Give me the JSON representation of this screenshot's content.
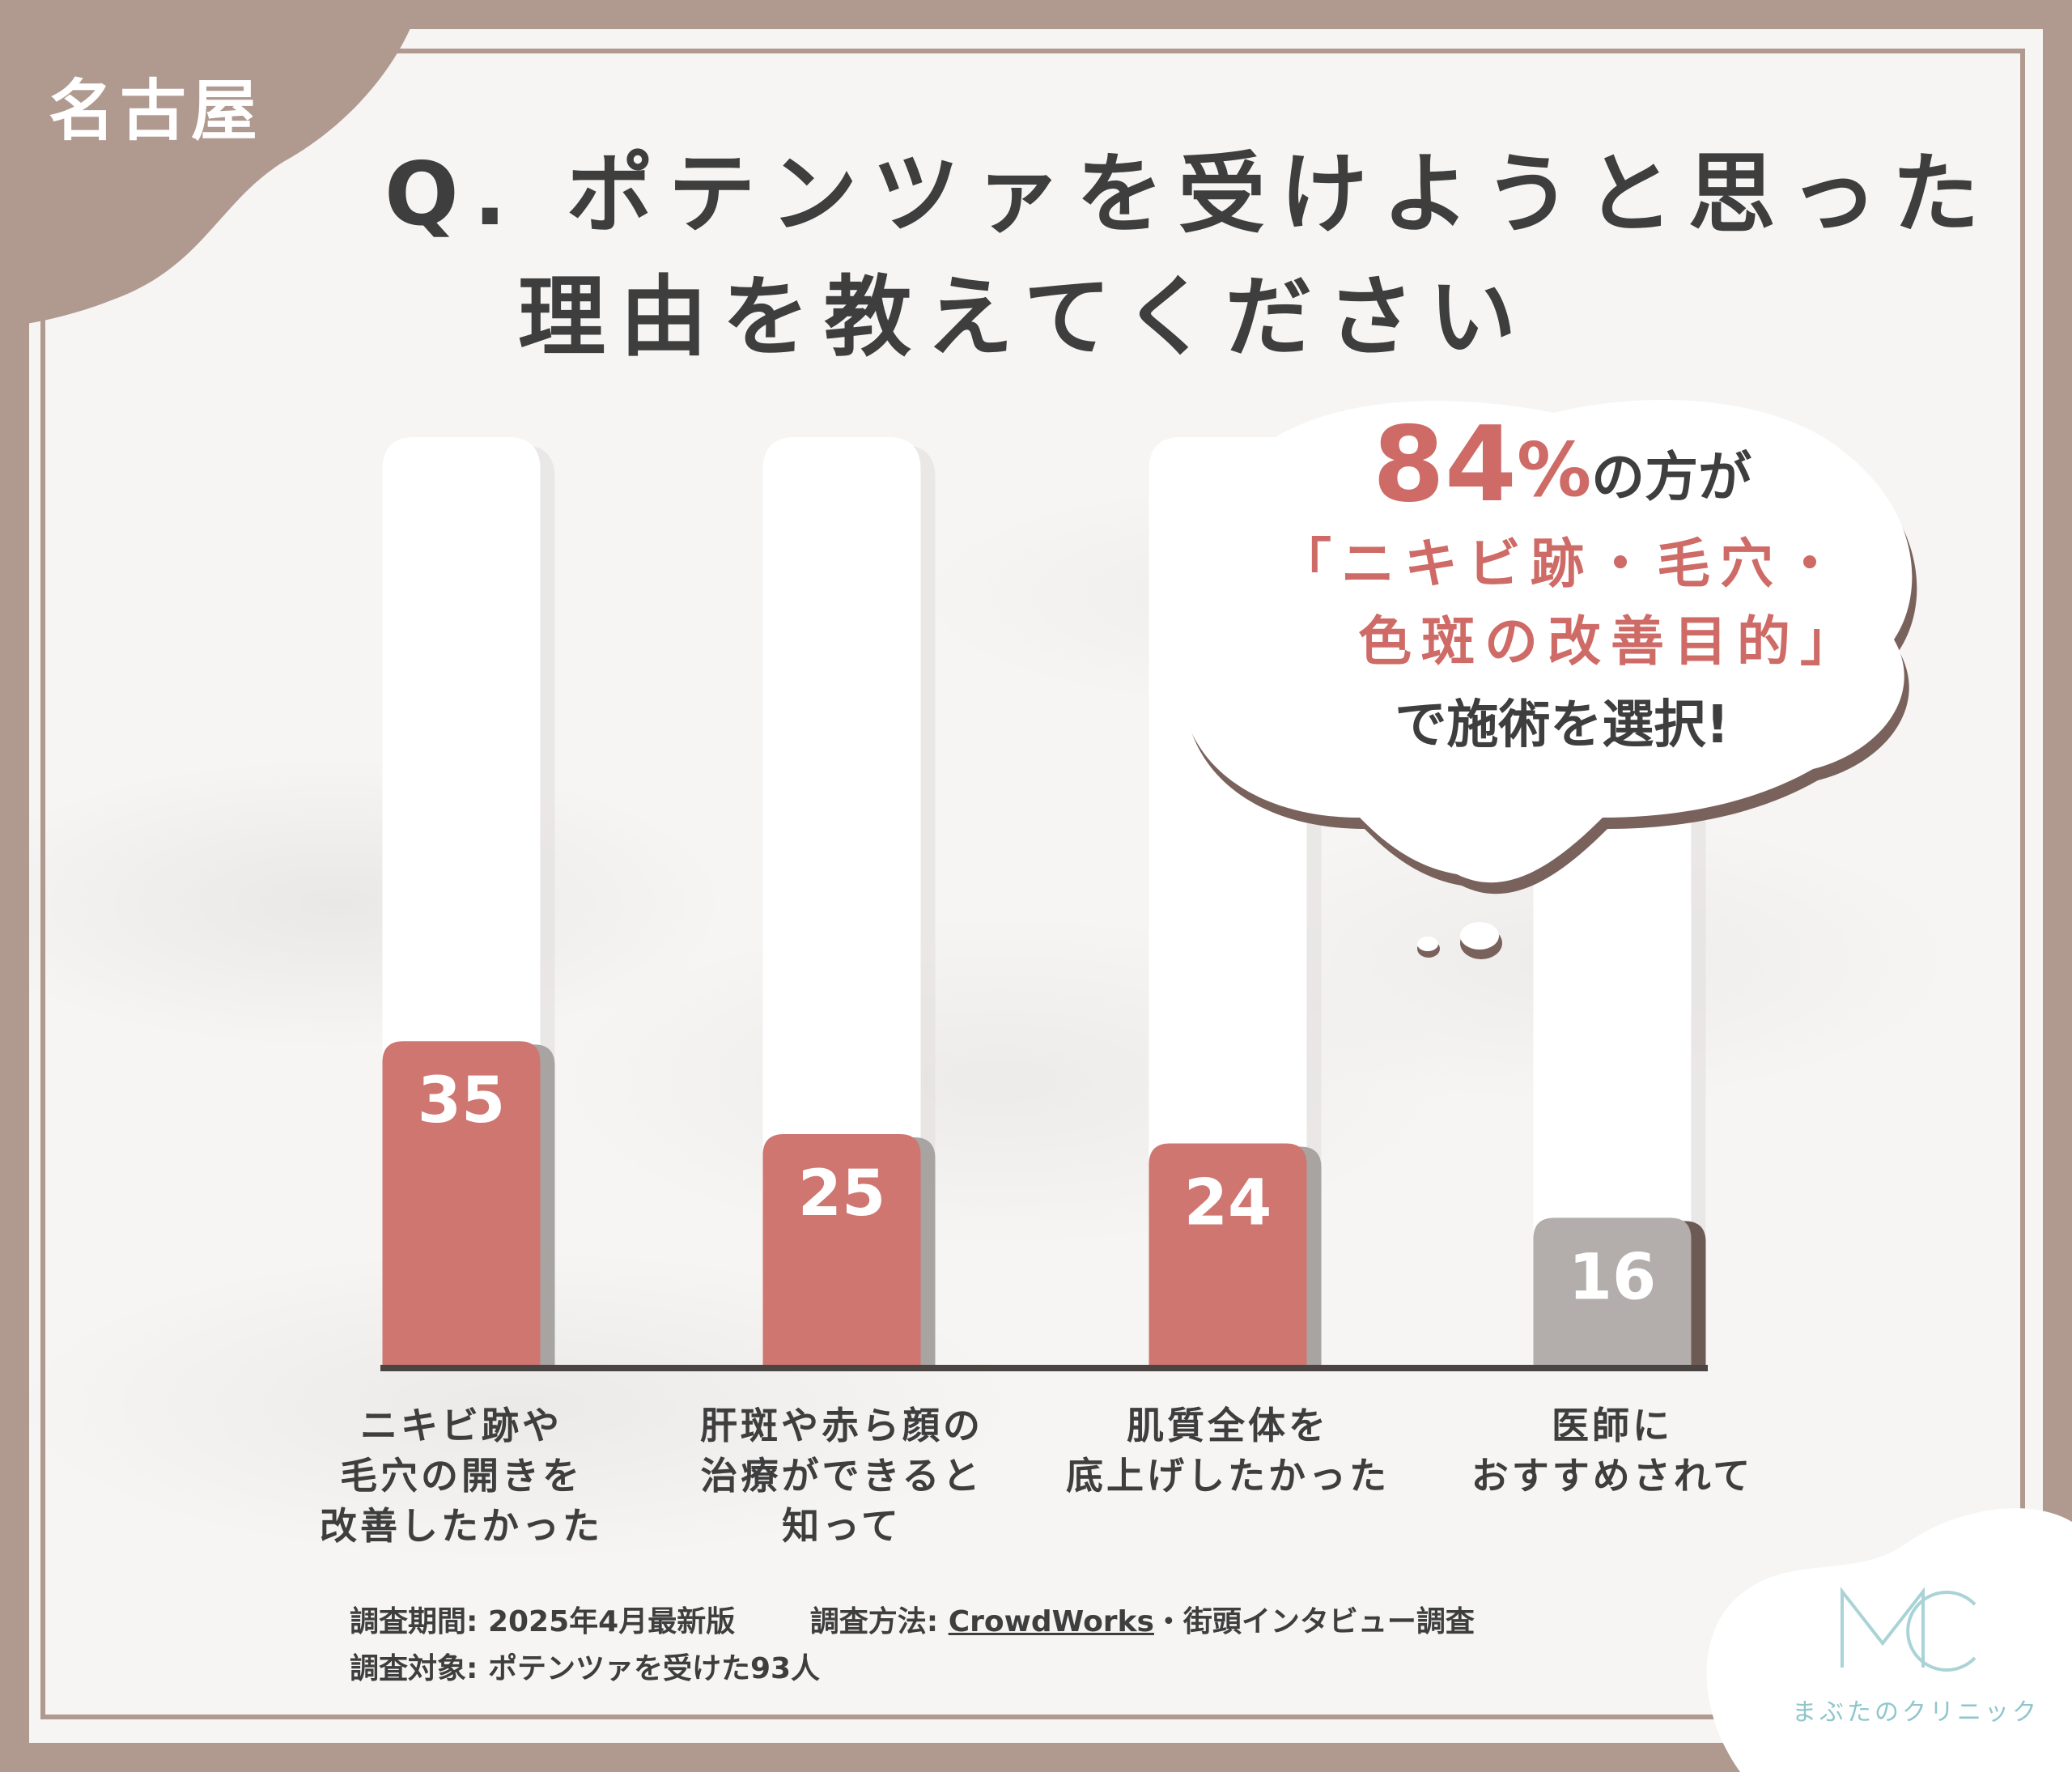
{
  "badge": {
    "city": "名古屋"
  },
  "question": {
    "line1": "Q. ポテンツァを受けようと思った",
    "line2": "理由を教えてください"
  },
  "callout": {
    "pct_number": "84",
    "pct_sign": "%",
    "pct_suffix": "の方が",
    "highlight_line1": "「ニキビ跡・毛穴・",
    "highlight_line2": "色斑の改善目的」",
    "closing": "で施術を選択!"
  },
  "chart_data": {
    "type": "bar",
    "categories": [
      "ニキビ跡や\n毛穴の開きを\n改善したかった",
      "肝斑や赤ら顔の\n治療ができると\n知って",
      "肌質全体を\n底上げしたかった",
      "医師に\nおすすめされて"
    ],
    "values": [
      35,
      25,
      24,
      16
    ],
    "value_labels": [
      "35",
      "25",
      "24",
      "16"
    ],
    "colors": [
      "#cf7671",
      "#cf7671",
      "#cf7671",
      "#b3aeab"
    ],
    "ylim": [
      0,
      100
    ]
  },
  "survey": {
    "period_label": "調査期間:",
    "period_value": "2025年4月最新版",
    "method_label": "調査方法:",
    "method_link": "CrowdWorks",
    "method_rest": "・街頭インタビュー調査",
    "target_label": "調査対象:",
    "target_value": "ポテンツァを受けた93人"
  },
  "logo": {
    "mark": "MC",
    "name": "まぶたのクリニック"
  }
}
